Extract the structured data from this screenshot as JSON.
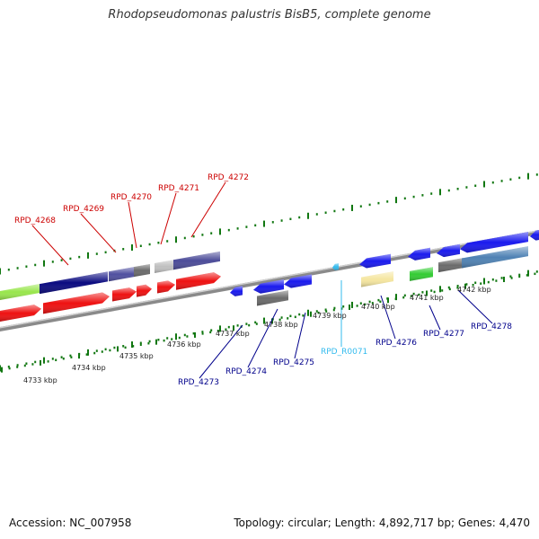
{
  "header": {
    "title": "Rhodopseudomonas palustris BisB5, complete genome"
  },
  "footer": {
    "accession": "Accession: NC_007958",
    "topology": "Topology: circular; Length: 4,892,717 bp; Genes: 4,470"
  },
  "colors": {
    "label_forward": "#cc0000",
    "label_reverse": "#00008b",
    "label_rna": "#33bbee",
    "tick": "#117711",
    "backbone": "#8a8a8a"
  },
  "ruler_labels": [
    "4733 kbp",
    "4734 kbp",
    "4735 kbp",
    "4736 kbp",
    "4737 kbp",
    "4738 kbp",
    "4739 kbp",
    "4740 kbp",
    "4741 kbp",
    "4742 kbp"
  ],
  "gene_labels": {
    "forward": [
      "RPD_4268",
      "RPD_4269",
      "RPD_4270",
      "RPD_4271",
      "RPD_4272"
    ],
    "reverse": [
      "RPD_4273",
      "RPD_4274",
      "RPD_4275",
      "RPD_R0071",
      "RPD_4276",
      "RPD_4277",
      "RPD_4278"
    ]
  }
}
